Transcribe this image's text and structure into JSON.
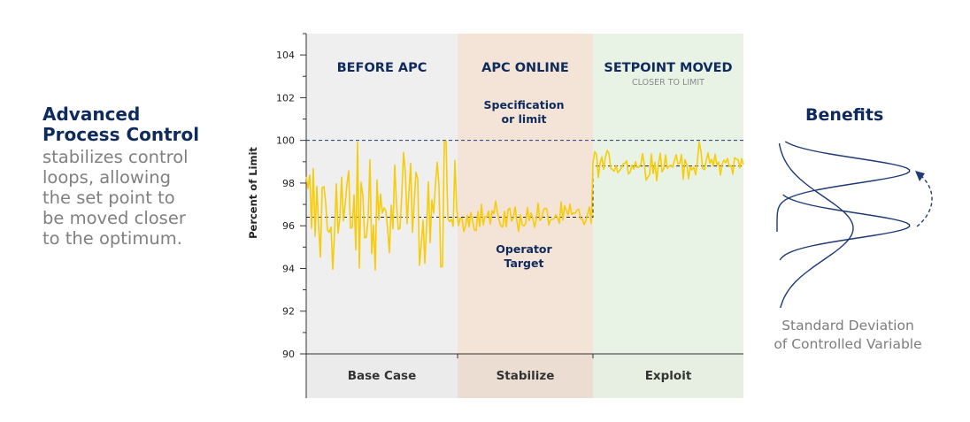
{
  "left_panel": {
    "heading_line1": "Advanced",
    "heading_line2": "Process Control",
    "body_lines": [
      "stabilizes control",
      "loops, allowing",
      "the set point to",
      "be moved closer",
      "to the optimum."
    ]
  },
  "chart_data": {
    "type": "line",
    "ylabel": "Percent of Limit",
    "ylim": [
      90,
      105
    ],
    "yticks": [
      90,
      92,
      94,
      96,
      98,
      100,
      102,
      104
    ],
    "grid": false,
    "phases": [
      {
        "title": "BEFORE APC",
        "subtitle": "",
        "label": "Base Case",
        "color": "#efefef",
        "color_bottom": "#ebebeb"
      },
      {
        "title": "APC ONLINE",
        "subtitle": "",
        "label": "Stabilize",
        "color": "#f3e4d7",
        "color_bottom": "#ebddd1"
      },
      {
        "title": "SETPOINT MOVED",
        "subtitle": "CLOSER TO LIMIT",
        "label": "Exploit",
        "color": "#e9f3e5",
        "color_bottom": "#e6efe2"
      }
    ],
    "annotations": {
      "limit_label_line1": "Specification",
      "limit_label_line2": "or limit",
      "target_label_line1": "Operator",
      "target_label_line2": "Target"
    },
    "limit_value": 100,
    "target_before": 96.4,
    "target_after": 98.8,
    "series": [
      {
        "name": "Controlled Variable",
        "color": "#f7cc0a",
        "phase_ranges": [
          {
            "phase": "BEFORE APC",
            "mean": 96.5,
            "spread": 1.8,
            "min": 93.9,
            "max": 100
          },
          {
            "phase": "APC ONLINE",
            "mean": 96.4,
            "spread": 0.35,
            "min": 95.7,
            "max": 97.3
          },
          {
            "phase": "SETPOINT MOVED",
            "mean": 98.9,
            "spread": 0.35,
            "min": 98.1,
            "max": 100
          }
        ]
      }
    ]
  },
  "benefits": {
    "title": "Benefits",
    "caption_line1": "Standard Deviation",
    "caption_line2": "of Controlled Variable"
  },
  "colors": {
    "navy": "#0f2a5c",
    "gray_text": "#808080",
    "signal": "#f7cc0a"
  }
}
